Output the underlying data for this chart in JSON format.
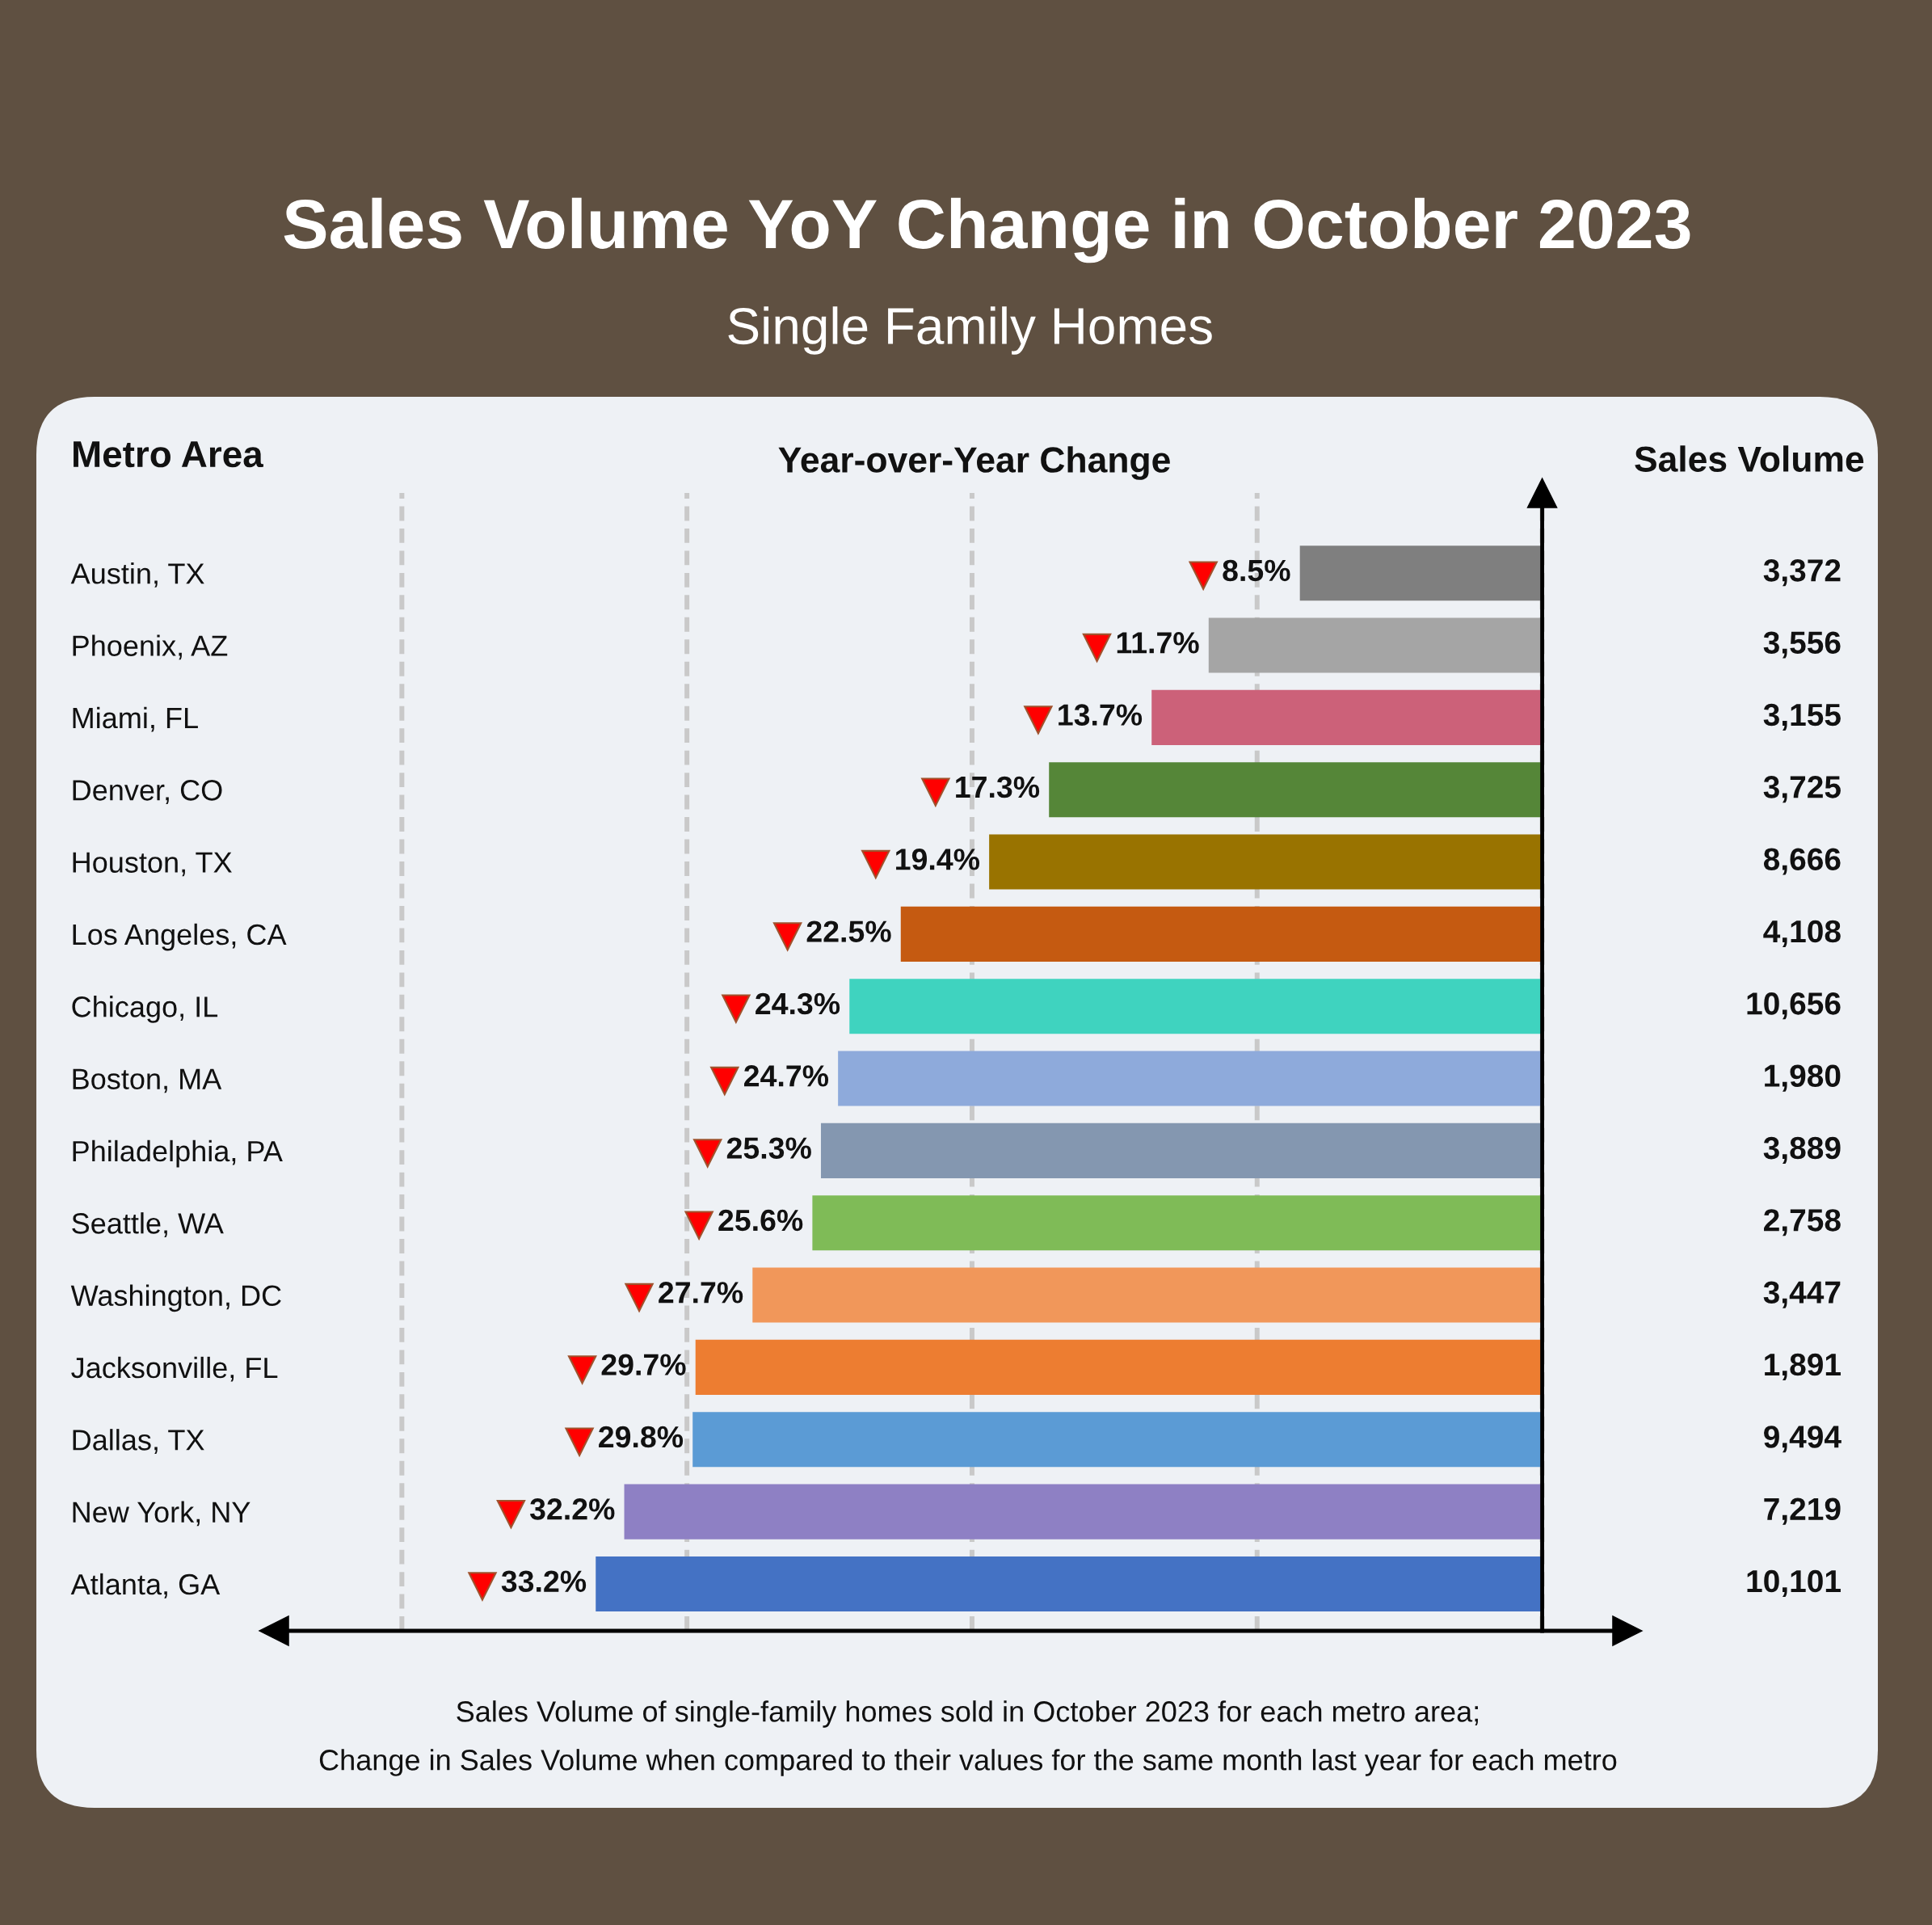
{
  "chart_data": [
    {
      "type": "bar",
      "orientation": "horizontal",
      "title": "Sales Volume YoY Change in October 2023",
      "subtitle": "Single Family Homes",
      "ylabel": "Metro Area",
      "xlabel": "Year-over-Year Change",
      "categories": [
        "Austin, TX",
        "Phoenix, AZ",
        "Miami, FL",
        "Denver, CO",
        "Houston, TX",
        "Los Angeles, CA",
        "Chicago, IL",
        "Boston, MA",
        "Philadelphia, PA",
        "Seattle, WA",
        "Washington, DC",
        "Jacksonville, FL",
        "Dallas, TX",
        "New York, NY",
        "Atlanta, GA"
      ],
      "values": [
        8.5,
        11.7,
        13.7,
        17.3,
        19.4,
        22.5,
        24.3,
        24.7,
        25.3,
        25.6,
        27.7,
        29.7,
        29.8,
        32.2,
        33.2
      ],
      "value_labels": [
        "8.5%",
        "11.7%",
        "13.7%",
        "17.3%",
        "19.4%",
        "22.5%",
        "24.3%",
        "24.7%",
        "25.3%",
        "25.6%",
        "27.7%",
        "29.7%",
        "29.8%",
        "32.2%",
        "33.2%"
      ],
      "colors": [
        "#7f7f7f",
        "#a5a5a5",
        "#cc6179",
        "#558638",
        "#997300",
        "#c55a11",
        "#3fd3bf",
        "#8eaadb",
        "#8497b0",
        "#7fbb57",
        "#f1975a",
        "#ed7d31",
        "#5b9bd5",
        "#8e80c4",
        "#4472c4"
      ],
      "grid": "x",
      "tick_labels": "y",
      "annotations": [
        "Sales Volume of single-family homes sold in October 2023 for each metro area;",
        "Change in Sales Volume when compared to their values for the same month last year for each metro"
      ]
    },
    {
      "type": "other",
      "title": "Sales Volume",
      "categories": [
        null,
        null,
        null,
        null,
        null,
        null,
        null,
        null,
        null,
        null,
        null,
        null,
        null,
        null,
        null
      ],
      "values": [
        3372,
        3556,
        3155,
        3725,
        8666,
        4108,
        10656,
        1980,
        3889,
        2758,
        3447,
        1891,
        9494,
        7219,
        10101
      ],
      "value_labels": [
        "3,372",
        "3,556",
        "3,155",
        "3,725",
        "8,666",
        "4,108",
        "10,656",
        "1,980",
        "3,889",
        "2,758",
        "3,447",
        "1,891",
        "9,494",
        "7,219",
        "10,101"
      ]
    }
  ]
}
